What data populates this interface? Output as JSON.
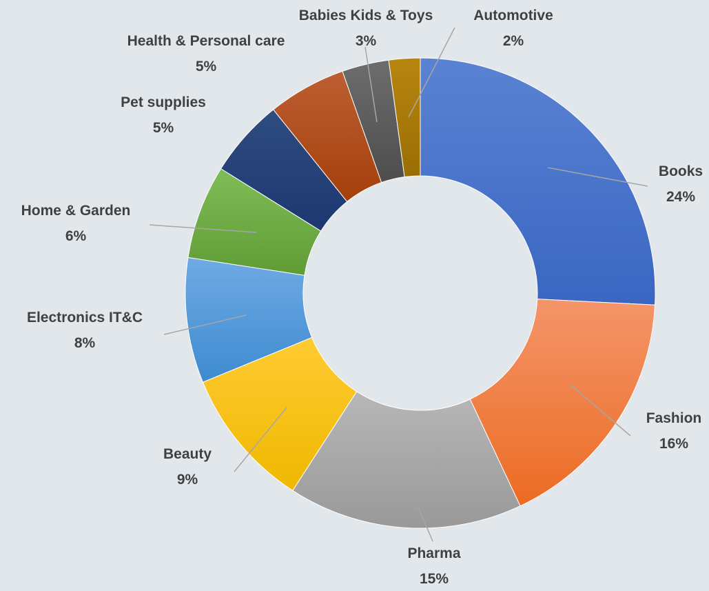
{
  "chart_data": {
    "type": "pie",
    "variant": "donut",
    "title": "",
    "legend": "none",
    "data_labels": "category name and percentage",
    "categories": [
      "Books",
      "Fashion",
      "Pharma",
      "Beauty",
      "Electronics IT&C",
      "Home & Garden",
      "Pet supplies",
      "Health & Personal care",
      "Babies Kids & Toys",
      "Automotive"
    ],
    "values": [
      24,
      16,
      15,
      9,
      8,
      6,
      5,
      5,
      3,
      2
    ],
    "percent_labels": [
      "24%",
      "16%",
      "15%",
      "9%",
      "8%",
      "6%",
      "5%",
      "5%",
      "3%",
      "2%"
    ],
    "colors": [
      [
        "#5b83d3",
        "#3a66c2"
      ],
      [
        "#f4956a",
        "#ec6b22"
      ],
      [
        "#b7b7b7",
        "#999999"
      ],
      [
        "#ffcb33",
        "#efb800"
      ],
      [
        "#6faae4",
        "#3e8bd0"
      ],
      [
        "#80bd58",
        "#5f9c35"
      ],
      [
        "#2f4d80",
        "#1d3770"
      ],
      [
        "#bd5f33",
        "#a43f0a"
      ],
      [
        "#6d6d6d",
        "#4d4d4d"
      ],
      [
        "#b8860f",
        "#9a6e05"
      ]
    ]
  }
}
